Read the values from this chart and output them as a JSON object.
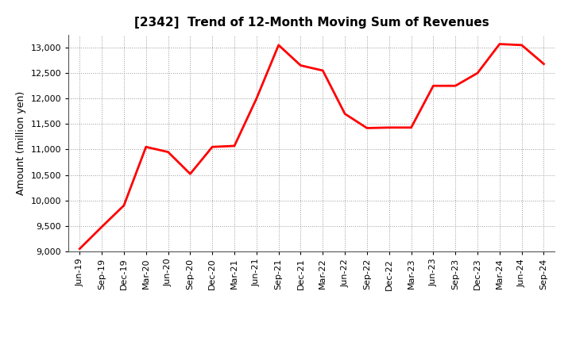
{
  "title": "[2342]  Trend of 12-Month Moving Sum of Revenues",
  "ylabel": "Amount (million yen)",
  "line_color": "#FF0000",
  "line_width": 2.0,
  "background_color": "#FFFFFF",
  "plot_bg_color": "#FFFFFF",
  "grid_color": "#999999",
  "ylim": [
    9000,
    13250
  ],
  "yticks": [
    9000,
    9500,
    10000,
    10500,
    11000,
    11500,
    12000,
    12500,
    13000
  ],
  "x_labels": [
    "Jun-19",
    "Sep-19",
    "Dec-19",
    "Mar-20",
    "Jun-20",
    "Sep-20",
    "Dec-20",
    "Mar-21",
    "Jun-21",
    "Sep-21",
    "Dec-21",
    "Mar-22",
    "Jun-22",
    "Sep-22",
    "Dec-22",
    "Mar-23",
    "Jun-23",
    "Sep-23",
    "Dec-23",
    "Mar-24",
    "Jun-24",
    "Sep-24"
  ],
  "y_values": [
    9050,
    9480,
    9900,
    11050,
    10950,
    10520,
    11050,
    11070,
    12000,
    13050,
    12650,
    12550,
    11700,
    11420,
    11430,
    11430,
    12250,
    12250,
    12500,
    13070,
    13050,
    12680
  ],
  "title_fontsize": 11,
  "ylabel_fontsize": 9,
  "tick_fontsize": 8,
  "figsize": [
    7.2,
    4.4
  ],
  "dpi": 100
}
